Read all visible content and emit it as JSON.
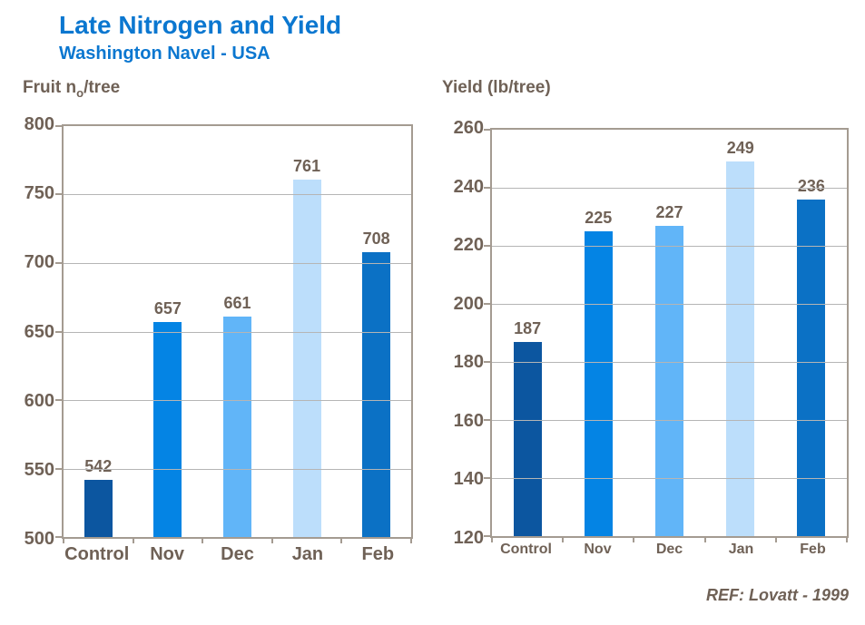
{
  "header": {
    "title": "Late Nitrogen and Yield",
    "subtitle": "Washington Navel - USA"
  },
  "footer": {
    "ref": "REF: Lovatt - 1999"
  },
  "colors": {
    "title_blue": "#0B77D0",
    "text_brown": "#6F6156",
    "frame_gray": "#A49B91",
    "gridline_gray": "#B5B5B5",
    "bar_control": "#0C56A0",
    "bar_nov": "#0484E4",
    "bar_dec": "#61B5F8",
    "bar_jan": "#BCDEFB",
    "bar_feb": "#0B71C5"
  },
  "chart_data": [
    {
      "type": "bar",
      "title_pre": "Fruit n",
      "title_sub": "o",
      "title_post": "/tree",
      "categories": [
        "Control",
        "Nov",
        "Dec",
        "Jan",
        "Feb"
      ],
      "values": [
        542,
        657,
        661,
        761,
        708
      ],
      "bar_colors": [
        "#0C56A0",
        "#0484E4",
        "#61B5F8",
        "#BCDEFB",
        "#0B71C5"
      ],
      "ylim": [
        500,
        800
      ],
      "yticks": [
        800,
        750,
        700,
        650,
        600,
        550,
        500
      ],
      "grid": true,
      "legend": "none",
      "data_labels": true
    },
    {
      "type": "bar",
      "title_pre": "Yield (lb/tree)",
      "title_sub": "",
      "title_post": "",
      "categories": [
        "Control",
        "Nov",
        "Dec",
        "Jan",
        "Feb"
      ],
      "values": [
        187,
        225,
        227,
        249,
        236
      ],
      "bar_colors": [
        "#0C56A0",
        "#0484E4",
        "#61B5F8",
        "#BCDEFB",
        "#0B71C5"
      ],
      "ylim": [
        120,
        260
      ],
      "yticks": [
        260,
        240,
        220,
        200,
        180,
        160,
        140,
        120
      ],
      "grid": true,
      "legend": "none",
      "data_labels": true
    }
  ]
}
